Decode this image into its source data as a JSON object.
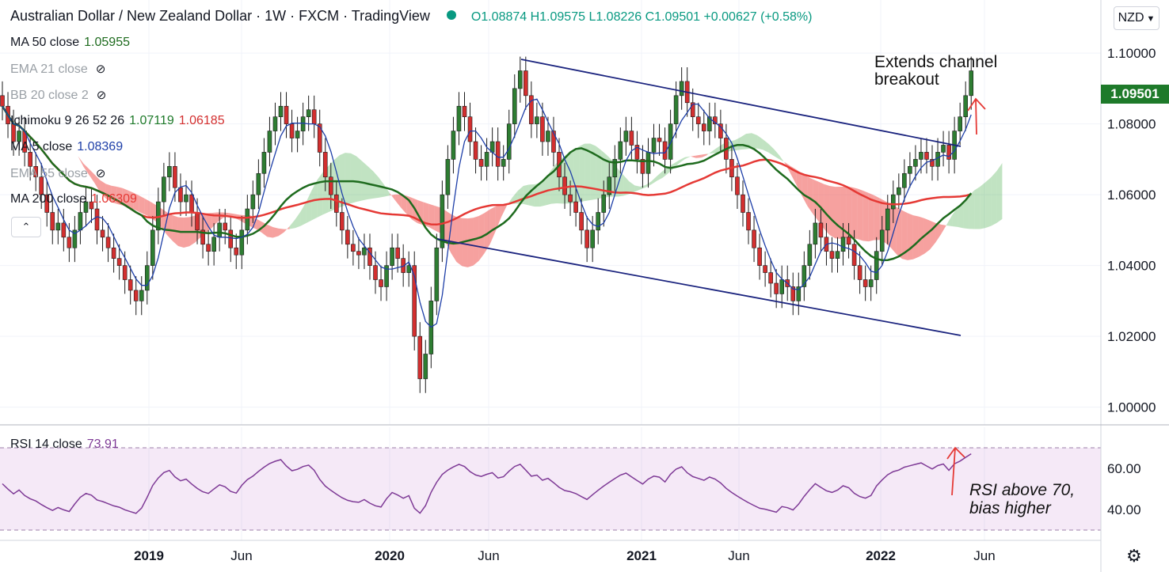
{
  "header": {
    "title": "Australian Dollar / New Zealand Dollar · 1W · FXCM · TradingView",
    "ohlc": "O1.08874  H1.09575  L1.08226  C1.09501  +0.00627 (+0.58%)"
  },
  "indicators": [
    {
      "label": "MA 50 close",
      "value": "1.05955",
      "color": "#1e6b1e",
      "hidden": false
    },
    {
      "label": "EMA 21 close",
      "value": "",
      "color": "#9aa0a6",
      "hidden": true
    },
    {
      "label": "BB 20 close 2",
      "value": "",
      "color": "#9aa0a6",
      "hidden": true
    },
    {
      "label": "Ichimoku 9 26 52 26",
      "value": "1.07119",
      "value2": "1.06185",
      "color": "#1e7a2a",
      "color2": "#d32f2f",
      "hidden": false
    },
    {
      "label": "MA 5 close",
      "value": "1.08369",
      "color": "#1e3fa8",
      "hidden": false
    },
    {
      "label": "EMA 55 close",
      "value": "",
      "color": "#9aa0a6",
      "hidden": true
    },
    {
      "label": "MA 200 close",
      "value": "1.06309",
      "color": "#e53935",
      "hidden": false
    }
  ],
  "currency_button": "NZD",
  "last_price": "1.09501",
  "annotations": {
    "channel": "Extends channel breakout",
    "rsi": "RSI above 70, bias higher"
  },
  "rsi_legend": {
    "label": "RSI 14 close",
    "value": "73.91"
  },
  "icons": [
    "eye-off-icon",
    "chevron-up-icon",
    "chevron-down-icon",
    "gear-icon"
  ],
  "chart_data": {
    "type": "line",
    "title": "Australian Dollar / New Zealand Dollar",
    "timeframe": "1W",
    "x_tick_labels": [
      "2019",
      "Jun",
      "2020",
      "Jun",
      "2021",
      "Jun",
      "2022",
      "Jun"
    ],
    "y_ticks": [
      1.0,
      1.02,
      1.04,
      1.06,
      1.08,
      1.1
    ],
    "y_tick_labels": [
      "1.00000",
      "1.02000",
      "1.04000",
      "1.06000",
      "1.08000",
      "1.10000"
    ],
    "ylim": [
      0.995,
      1.115
    ],
    "approx_close": [
      1.085,
      1.08,
      1.075,
      1.078,
      1.072,
      1.068,
      1.065,
      1.06,
      1.055,
      1.05,
      1.052,
      1.048,
      1.045,
      1.05,
      1.055,
      1.058,
      1.056,
      1.05,
      1.048,
      1.045,
      1.042,
      1.04,
      1.036,
      1.033,
      1.03,
      1.033,
      1.04,
      1.05,
      1.058,
      1.065,
      1.068,
      1.062,
      1.058,
      1.06,
      1.055,
      1.05,
      1.046,
      1.044,
      1.048,
      1.052,
      1.05,
      1.045,
      1.043,
      1.05,
      1.056,
      1.06,
      1.066,
      1.072,
      1.078,
      1.082,
      1.085,
      1.08,
      1.076,
      1.078,
      1.082,
      1.084,
      1.08,
      1.072,
      1.065,
      1.06,
      1.055,
      1.05,
      1.046,
      1.044,
      1.043,
      1.045,
      1.04,
      1.036,
      1.034,
      1.04,
      1.045,
      1.042,
      1.038,
      1.04,
      1.02,
      1.008,
      1.015,
      1.03,
      1.045,
      1.06,
      1.07,
      1.078,
      1.085,
      1.082,
      1.075,
      1.07,
      1.068,
      1.072,
      1.075,
      1.068,
      1.07,
      1.08,
      1.09,
      1.095,
      1.088,
      1.08,
      1.082,
      1.075,
      1.078,
      1.072,
      1.065,
      1.06,
      1.058,
      1.055,
      1.05,
      1.045,
      1.05,
      1.055,
      1.06,
      1.065,
      1.07,
      1.075,
      1.078,
      1.074,
      1.07,
      1.066,
      1.072,
      1.076,
      1.075,
      1.07,
      1.08,
      1.088,
      1.092,
      1.086,
      1.082,
      1.08,
      1.078,
      1.082,
      1.08,
      1.076,
      1.07,
      1.065,
      1.06,
      1.055,
      1.05,
      1.045,
      1.04,
      1.038,
      1.035,
      1.032,
      1.036,
      1.034,
      1.03,
      1.034,
      1.04,
      1.046,
      1.052,
      1.048,
      1.044,
      1.042,
      1.044,
      1.048,
      1.046,
      1.04,
      1.036,
      1.034,
      1.036,
      1.044,
      1.05,
      1.056,
      1.06,
      1.062,
      1.066,
      1.068,
      1.07,
      1.072,
      1.07,
      1.068,
      1.072,
      1.074,
      1.07,
      1.078,
      1.082,
      1.088,
      1.095
    ],
    "channel_upper": [
      {
        "x": "2020 Jun",
        "y": 1.104
      },
      {
        "x": "2022 Mar",
        "y": 1.079
      }
    ],
    "channel_lower": [
      {
        "x": "2020 Mar",
        "y": 1.049
      },
      {
        "x": "2022 Jun",
        "y": 1.02
      }
    ],
    "rsi": {
      "name": "RSI 14 close",
      "last": 73.91,
      "y_ticks": [
        40,
        60
      ],
      "y_tick_labels": [
        "40.00",
        "60.00"
      ],
      "band": [
        30,
        70
      ],
      "ylim": [
        25,
        80
      ]
    },
    "grid": true,
    "legend": "top-left"
  }
}
